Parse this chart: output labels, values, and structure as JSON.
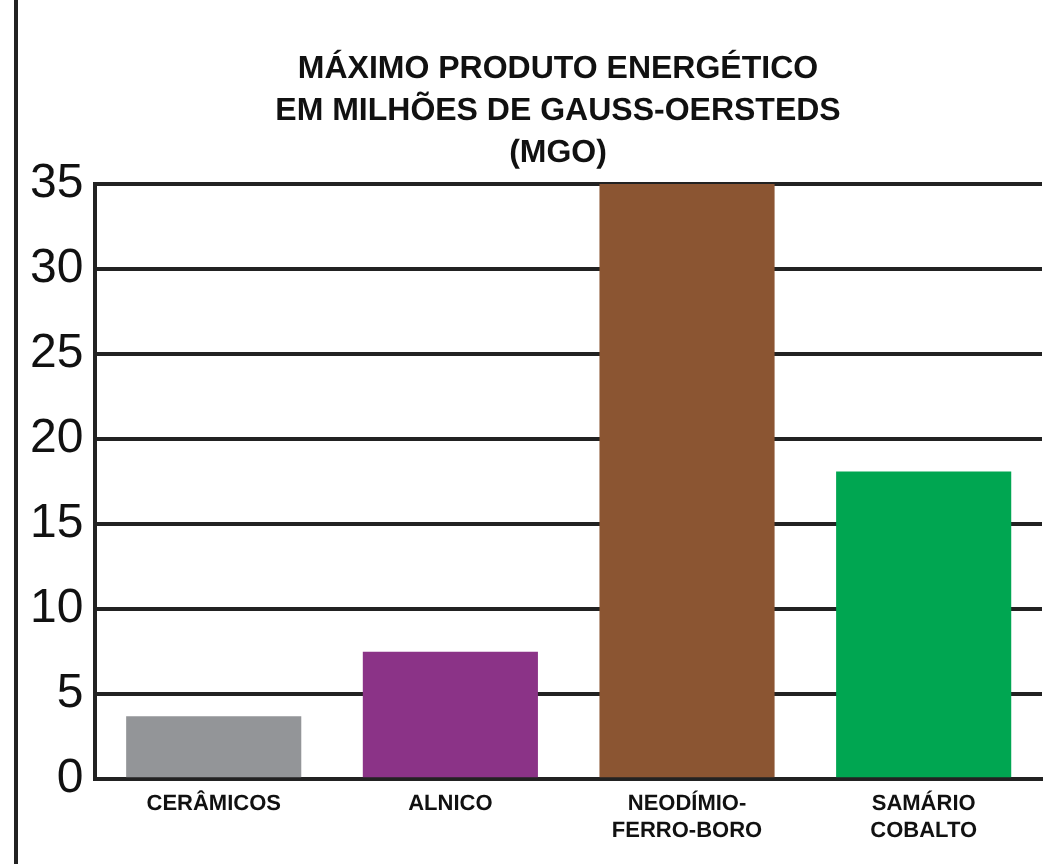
{
  "chart_data": {
    "type": "bar",
    "title": "MÁXIMO PRODUTO ENERGÉTICO\nEM MILHÕES DE GAUSS-OERSTEDS\n(MGO)",
    "categories": [
      "CERÂMICOS",
      "ALNICO",
      "NEODÍMIO-FERRO-BORO",
      "SAMÁRIO COBALTO"
    ],
    "values": [
      3.7,
      7.5,
      35,
      18.1
    ],
    "colors": [
      "#939598",
      "#8b3387",
      "#8b5532",
      "#00a651"
    ],
    "ylim": [
      0,
      35
    ],
    "yticks": [
      0,
      5,
      10,
      15,
      20,
      25,
      30,
      35
    ],
    "grid": "y"
  }
}
